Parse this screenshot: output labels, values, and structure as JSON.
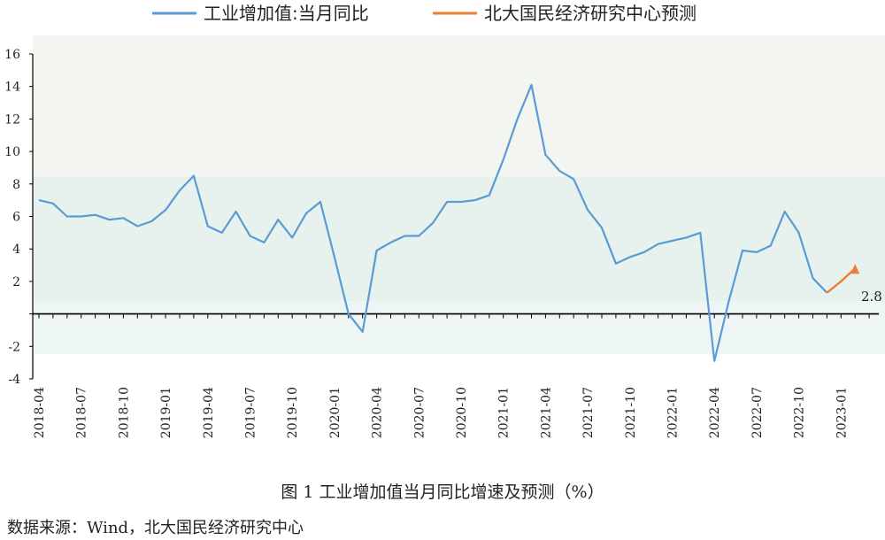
{
  "caption": "图 1 工业增加值当月同比增速及预测（%）",
  "source": "数据来源：Wind，北大国民经济研究中心",
  "chart_data": {
    "type": "line",
    "ylim": [
      -4,
      16
    ],
    "yticks": [
      -4,
      -2,
      0,
      2,
      4,
      6,
      8,
      10,
      12,
      14,
      16
    ],
    "ytick_labels": [
      "-4",
      "-2",
      "",
      "2",
      "4",
      "6",
      "8",
      "10",
      "12",
      "14",
      "16"
    ],
    "x_labels": [
      "2018-04",
      "2018-07",
      "2018-10",
      "2019-01",
      "2019-04",
      "2019-07",
      "2019-10",
      "2020-01",
      "2020-04",
      "2020-07",
      "2020-10",
      "2021-01",
      "2021-04",
      "2021-07",
      "2021-10",
      "2022-01",
      "2022-04",
      "2022-07",
      "2022-10",
      "2023-01"
    ],
    "colors": {
      "actual": "#5b9bd5",
      "forecast": "#ed7d31",
      "axis": "#000000"
    },
    "series": [
      {
        "name": "工业增加值:当月同比",
        "x": [
          "2018-04",
          "2018-05",
          "2018-06",
          "2018-07",
          "2018-08",
          "2018-09",
          "2018-10",
          "2018-11",
          "2018-12",
          "2019-01",
          "2019-02",
          "2019-03",
          "2019-04",
          "2019-05",
          "2019-06",
          "2019-07",
          "2019-08",
          "2019-09",
          "2019-10",
          "2019-11",
          "2019-12",
          "2020-01",
          "2020-02",
          "2020-03",
          "2020-04",
          "2020-05",
          "2020-06",
          "2020-07",
          "2020-08",
          "2020-09",
          "2020-10",
          "2020-11",
          "2020-12",
          "2021-01",
          "2021-02",
          "2021-03",
          "2021-04",
          "2021-05",
          "2021-06",
          "2021-07",
          "2021-08",
          "2021-09",
          "2021-10",
          "2021-11",
          "2021-12",
          "2022-01",
          "2022-02",
          "2022-03",
          "2022-04",
          "2022-05",
          "2022-06",
          "2022-07",
          "2022-08",
          "2022-09",
          "2022-10",
          "2022-11",
          "2022-12"
        ],
        "values": [
          7.0,
          6.8,
          6.0,
          6.0,
          6.1,
          5.8,
          5.9,
          5.4,
          5.7,
          6.4,
          7.6,
          8.5,
          5.4,
          5.0,
          6.3,
          4.8,
          4.4,
          5.8,
          4.7,
          6.2,
          6.9,
          3.5,
          0.0,
          -1.1,
          3.9,
          4.4,
          4.8,
          4.8,
          5.6,
          6.9,
          6.9,
          7.0,
          7.3,
          9.5,
          12.0,
          14.1,
          9.8,
          8.8,
          8.3,
          6.4,
          5.3,
          3.1,
          3.5,
          3.8,
          4.3,
          4.5,
          4.7,
          5.0,
          -2.9,
          0.7,
          3.9,
          3.8,
          4.2,
          6.3,
          5.0,
          2.2,
          1.3
        ]
      },
      {
        "name": "北大国民经济研究中心预测",
        "x": [
          "2022-12",
          "2023-01",
          "2023-02"
        ],
        "values": [
          1.3,
          2.0,
          2.8
        ],
        "label": "2.8"
      }
    ]
  }
}
